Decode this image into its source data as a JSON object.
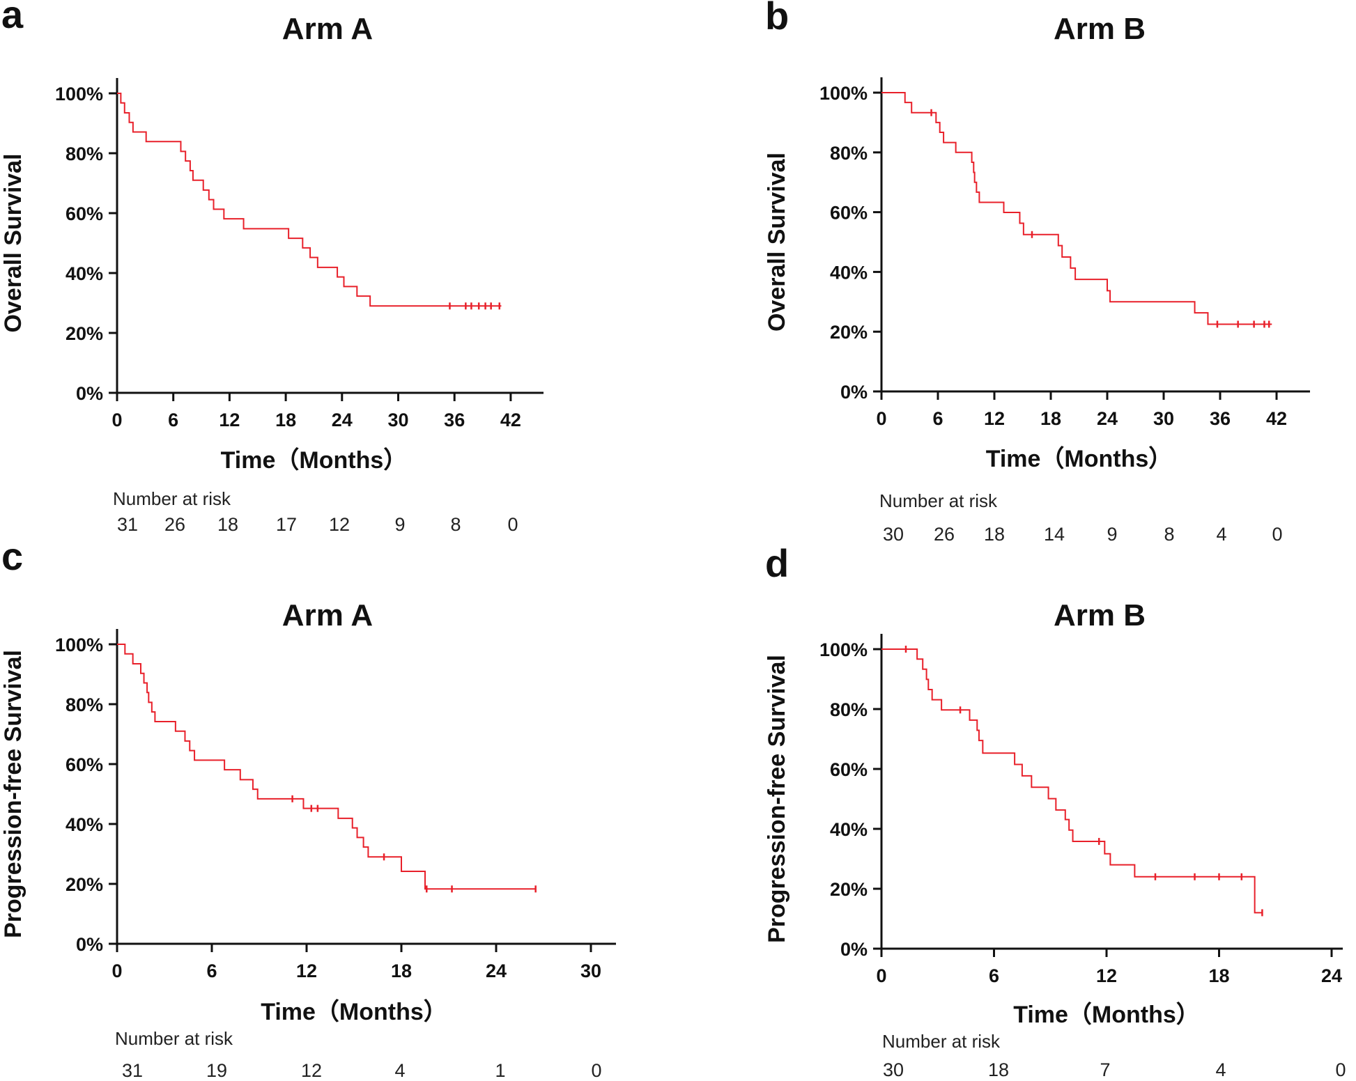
{
  "chart_data": [
    {
      "panel": "a",
      "type": "line",
      "title": "Arm A",
      "xlabel": "Time（Months）",
      "ylabel": "Overall Survival",
      "xlim": [
        0,
        45
      ],
      "xticks": [
        0,
        6,
        12,
        18,
        24,
        30,
        36,
        42
      ],
      "ylim": [
        0,
        100
      ],
      "yticks": [
        "0%",
        "20%",
        "40%",
        "60%",
        "80%",
        "100%"
      ],
      "line_color": "#e8202a",
      "series": [
        {
          "name": "Arm A",
          "steps": [
            [
              0,
              100
            ],
            [
              0.4,
              96.8
            ],
            [
              0.8,
              93.5
            ],
            [
              1.3,
              90.3
            ],
            [
              1.7,
              87.1
            ],
            [
              3.1,
              83.9
            ],
            [
              6.8,
              80.6
            ],
            [
              7.3,
              77.4
            ],
            [
              7.8,
              74.2
            ],
            [
              8.1,
              71
            ],
            [
              9.2,
              67.7
            ],
            [
              9.8,
              64.5
            ],
            [
              10.3,
              61.3
            ],
            [
              11.4,
              58.1
            ],
            [
              13.5,
              54.8
            ],
            [
              18.3,
              51.6
            ],
            [
              19.8,
              48.4
            ],
            [
              20.6,
              45.2
            ],
            [
              21.4,
              41.9
            ],
            [
              23.5,
              38.7
            ],
            [
              24.2,
              35.5
            ],
            [
              25.6,
              32.3
            ],
            [
              27,
              29
            ]
          ],
          "end": 41,
          "censored": [
            35.5,
            37.2,
            37.8,
            38.6,
            39.3,
            39.9,
            40.8
          ]
        }
      ],
      "risk_table": {
        "label": "Number at risk",
        "values": [
          "31",
          "26",
          "18",
          "17",
          "12",
          "9",
          "8",
          "0"
        ]
      }
    },
    {
      "panel": "b",
      "type": "line",
      "title": "Arm B",
      "xlabel": "Time（Months）",
      "ylabel": "Overall Survival",
      "xlim": [
        0,
        45
      ],
      "xticks": [
        0,
        6,
        12,
        18,
        24,
        30,
        36,
        42
      ],
      "ylim": [
        0,
        100
      ],
      "yticks": [
        "0%",
        "20%",
        "40%",
        "60%",
        "80%",
        "100%"
      ],
      "line_color": "#e8202a",
      "series": [
        {
          "name": "Arm B",
          "steps": [
            [
              0,
              100
            ],
            [
              2.5,
              96.7
            ],
            [
              3.2,
              93.3
            ],
            [
              5.8,
              90
            ],
            [
              6.2,
              86.7
            ],
            [
              6.6,
              83.3
            ],
            [
              7.9,
              80
            ],
            [
              9.6,
              76.7
            ],
            [
              9.8,
              73.3
            ],
            [
              9.9,
              70
            ],
            [
              10.1,
              66.7
            ],
            [
              10.4,
              63.3
            ],
            [
              13,
              59.9
            ],
            [
              14.7,
              56.3
            ],
            [
              15.1,
              52.5
            ],
            [
              18.8,
              48.8
            ],
            [
              19.2,
              45
            ],
            [
              20.1,
              41.3
            ],
            [
              20.6,
              37.5
            ],
            [
              24,
              33.7
            ],
            [
              24.3,
              30
            ],
            [
              33.3,
              26.3
            ],
            [
              34.7,
              22.5
            ]
          ],
          "end": 41.5,
          "censored": [
            5.3,
            16,
            35.7,
            37.9,
            39.6,
            40.7,
            41.2
          ]
        }
      ],
      "risk_table": {
        "label": "Number at risk",
        "values": [
          "30",
          "26",
          "18",
          "14",
          "9",
          "8",
          "4",
          "0"
        ]
      }
    },
    {
      "panel": "c",
      "type": "line",
      "title": "Arm A",
      "xlabel": "Time（Months）",
      "ylabel": "Progression-free  Survival",
      "xlim": [
        0,
        32
      ],
      "xticks": [
        0,
        6,
        12,
        18,
        24,
        30
      ],
      "ylim": [
        0,
        100
      ],
      "yticks": [
        "0%",
        "20%",
        "40%",
        "60%",
        "80%",
        "100%"
      ],
      "line_color": "#e8202a",
      "series": [
        {
          "name": "Arm A",
          "steps": [
            [
              0,
              100
            ],
            [
              0.5,
              96.8
            ],
            [
              1,
              93.5
            ],
            [
              1.5,
              90.3
            ],
            [
              1.7,
              87.1
            ],
            [
              1.9,
              83.9
            ],
            [
              2,
              80.6
            ],
            [
              2.2,
              77.4
            ],
            [
              2.4,
              74.2
            ],
            [
              3.7,
              71
            ],
            [
              4.3,
              67.7
            ],
            [
              4.6,
              64.5
            ],
            [
              4.9,
              61.3
            ],
            [
              6.8,
              58.1
            ],
            [
              7.8,
              54.8
            ],
            [
              8.6,
              51.6
            ],
            [
              8.9,
              48.4
            ],
            [
              11.8,
              45.2
            ],
            [
              14,
              41.9
            ],
            [
              14.9,
              38.7
            ],
            [
              15.2,
              35.5
            ],
            [
              15.6,
              32.3
            ],
            [
              15.9,
              29
            ],
            [
              18,
              24.2
            ],
            [
              19.5,
              18.3
            ]
          ],
          "end": 26.5,
          "censored": [
            11.1,
            12.3,
            12.7,
            16.9,
            19.6,
            21.2,
            26.5
          ]
        }
      ],
      "risk_table": {
        "label": "Number at risk",
        "values": [
          "31",
          "19",
          "12",
          "4",
          "1",
          "0"
        ]
      }
    },
    {
      "panel": "d",
      "type": "line",
      "title": "Arm B",
      "xlabel": "Time（Months）",
      "ylabel": "Progression-free Survival",
      "xlim": [
        0,
        25
      ],
      "xticks": [
        0,
        6,
        12,
        18,
        24
      ],
      "ylim": [
        0,
        100
      ],
      "yticks": [
        "0%",
        "20%",
        "40%",
        "60%",
        "80%",
        "100%"
      ],
      "line_color": "#e8202a",
      "series": [
        {
          "name": "Arm B",
          "steps": [
            [
              0,
              100
            ],
            [
              1.9,
              96.7
            ],
            [
              2.2,
              93.3
            ],
            [
              2.4,
              89.9
            ],
            [
              2.5,
              86.5
            ],
            [
              2.7,
              83.1
            ],
            [
              3.2,
              79.7
            ],
            [
              4.7,
              76.3
            ],
            [
              5.1,
              72.9
            ],
            [
              5.2,
              69.5
            ],
            [
              5.4,
              65.3
            ],
            [
              7.1,
              61.5
            ],
            [
              7.5,
              57.7
            ],
            [
              8,
              53.9
            ],
            [
              8.9,
              50.1
            ],
            [
              9.3,
              46.3
            ],
            [
              9.8,
              43.1
            ],
            [
              10,
              39.6
            ],
            [
              10.2,
              35.8
            ],
            [
              11.9,
              31.7
            ],
            [
              12.2,
              28
            ],
            [
              13.5,
              24
            ],
            [
              19.9,
              12
            ]
          ],
          "end": 20.3,
          "censored": [
            1.3,
            4.2,
            11.6,
            14.6,
            16.7,
            18,
            19.2,
            20.3
          ]
        }
      ],
      "risk_table": {
        "label": "Number at risk",
        "values": [
          "30",
          "18",
          "7",
          "4",
          "0"
        ]
      }
    }
  ]
}
